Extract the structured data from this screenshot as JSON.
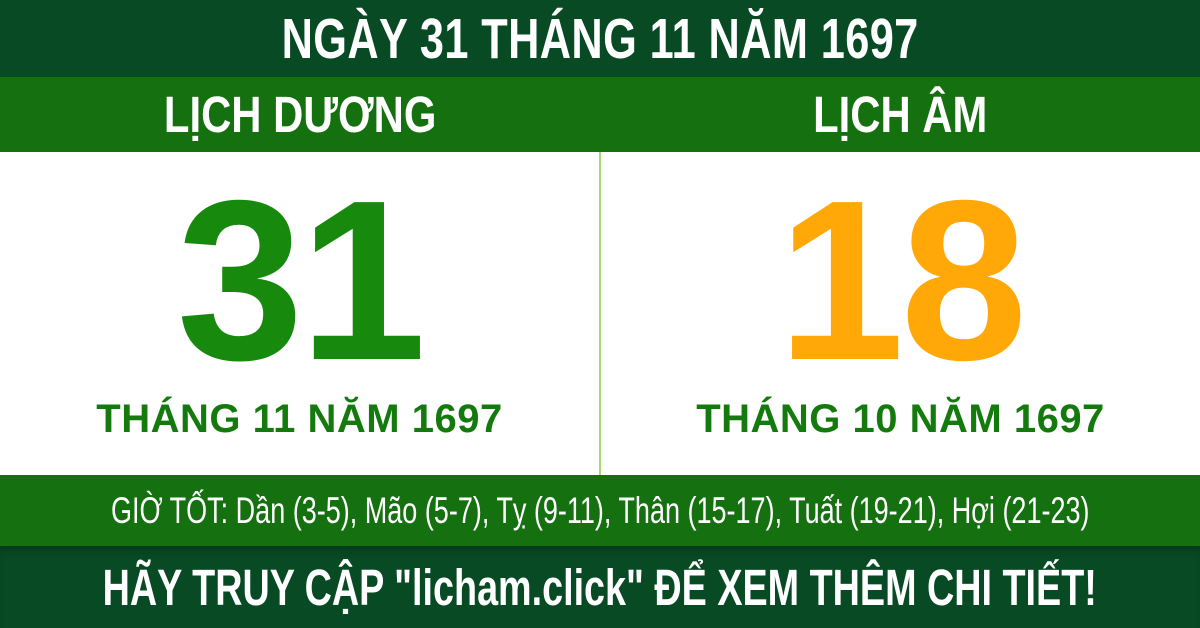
{
  "header": {
    "title": "NGÀY 31 THÁNG 11 NĂM 1697"
  },
  "columns": {
    "solar": {
      "label": "LỊCH DƯƠNG",
      "day": "31",
      "month_year": "THÁNG 11 NĂM 1697"
    },
    "lunar": {
      "label": "LỊCH ÂM",
      "day": "18",
      "month_year": "THÁNG 10 NĂM 1697"
    }
  },
  "good_hours": {
    "text": "GIỜ TỐT: Dần (3-5), Mão (5-7), Tỵ (9-11), Thân (15-17), Tuất (19-21), Hợi (21-23)"
  },
  "footer": {
    "text": "HÃY TRUY CẬP \"licham.click\" ĐỂ XEM THÊM CHI TIẾT!"
  },
  "colors": {
    "dark_green": "#084a24",
    "band_green": "#157010",
    "day_green": "#178a0e",
    "month_green": "#157a0d",
    "day_orange": "#ffa807",
    "divider_light_green": "#a8d878",
    "text_white": "#ffffff"
  }
}
